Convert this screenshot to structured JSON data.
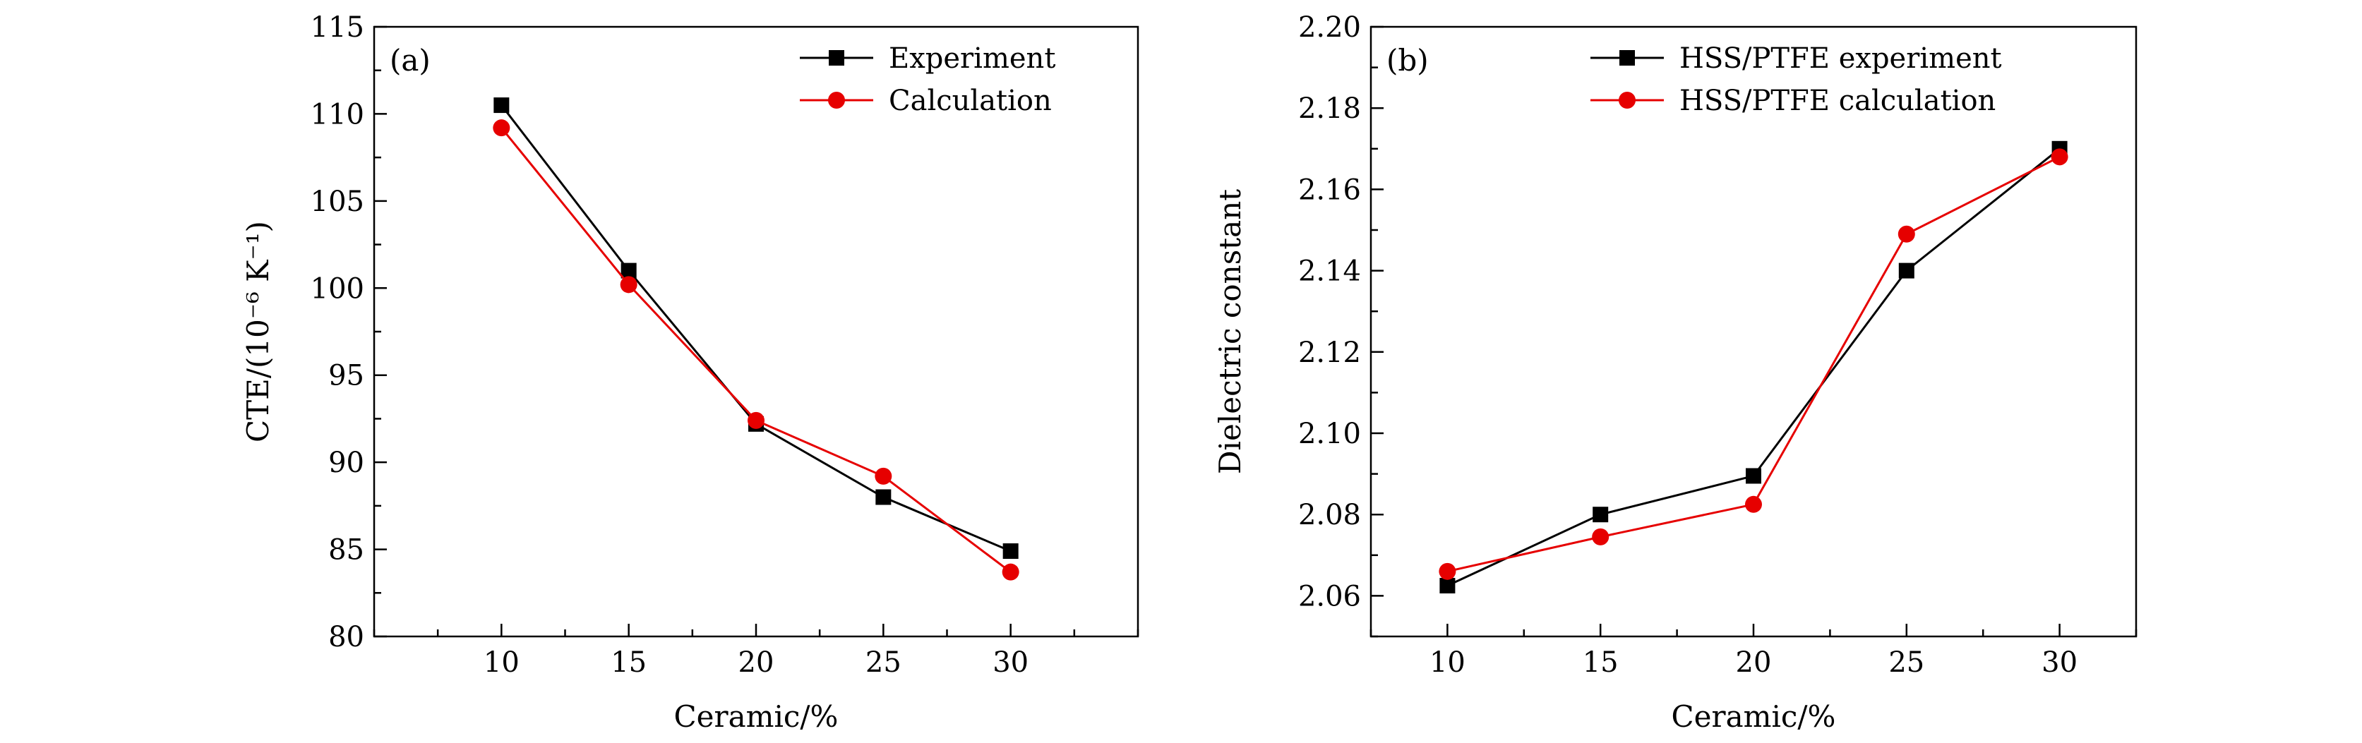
{
  "chart_data": [
    {
      "type": "line",
      "panel_label": "(a)",
      "xlabel": "Ceramic/%",
      "ylabel": "CTE/(10⁻⁶ K⁻¹)",
      "x": [
        10,
        15,
        20,
        25,
        30
      ],
      "xlim": [
        5,
        35
      ],
      "ylim": [
        80,
        115
      ],
      "xticks": [
        10,
        15,
        20,
        25,
        30
      ],
      "yticks": [
        80,
        85,
        90,
        95,
        100,
        105,
        110,
        115
      ],
      "legend": "top-right",
      "grid": false,
      "series": [
        {
          "name": "Experiment",
          "marker": "square",
          "color": "#000000",
          "values": [
            110.5,
            101.0,
            92.2,
            88.0,
            84.9
          ]
        },
        {
          "name": "Calculation",
          "marker": "circle",
          "color": "#e60000",
          "values": [
            109.2,
            100.2,
            92.4,
            89.2,
            83.7
          ]
        }
      ]
    },
    {
      "type": "line",
      "panel_label": "(b)",
      "xlabel": "Ceramic/%",
      "ylabel": "Dielectric constant",
      "x": [
        10,
        15,
        20,
        25,
        30
      ],
      "xlim": [
        7.5,
        32.5
      ],
      "ylim": [
        2.05,
        2.2
      ],
      "xticks": [
        10,
        15,
        20,
        25,
        30
      ],
      "yticks": [
        "2.06",
        "2.08",
        "2.10",
        "2.12",
        "2.14",
        "2.16",
        "2.18",
        "2.20"
      ],
      "legend": "top-right",
      "grid": false,
      "series": [
        {
          "name": "HSS/PTFE experiment",
          "marker": "square",
          "color": "#000000",
          "values": [
            2.0625,
            2.08,
            2.0895,
            2.14,
            2.17
          ]
        },
        {
          "name": "HSS/PTFE calculation",
          "marker": "circle",
          "color": "#e60000",
          "values": [
            2.066,
            2.0745,
            2.0825,
            2.149,
            2.168
          ]
        }
      ]
    }
  ]
}
